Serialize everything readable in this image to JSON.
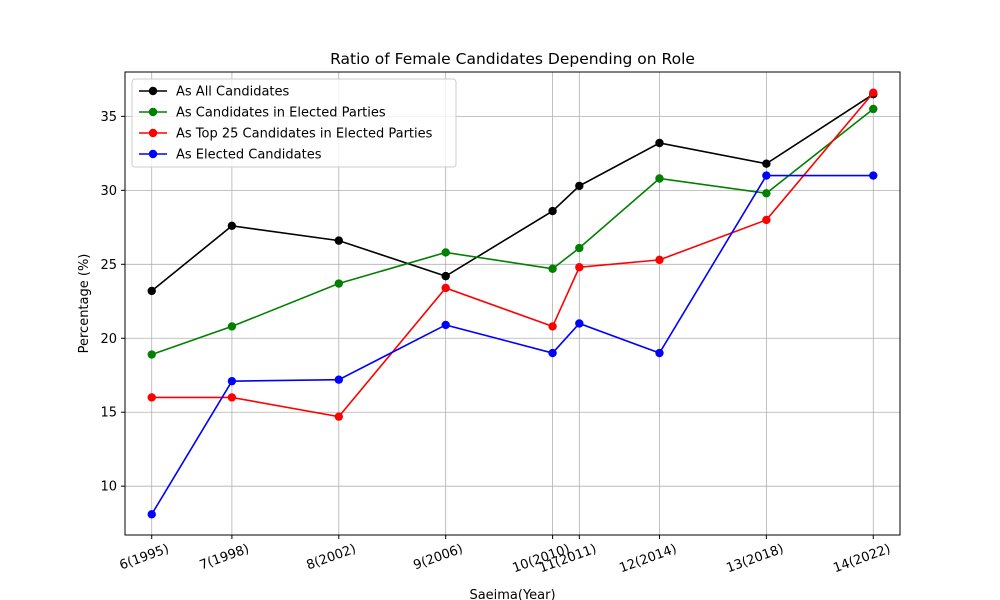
{
  "chart_data": {
    "type": "line",
    "title": "Ratio of Female Candidates Depending on Role",
    "xlabel": "Saeima(Year)",
    "ylabel": "Percentage (%)",
    "x": [
      1995,
      1998,
      2002,
      2006,
      2010,
      2011,
      2014,
      2018,
      2022
    ],
    "x_tick_labels": [
      "6(1995)",
      "7(1998)",
      "8(2002)",
      "9(2006)",
      "10(2010)",
      "11(2011)",
      "12(2014)",
      "13(2018)",
      "14(2022)"
    ],
    "xlim": [
      1994.0,
      2023.0
    ],
    "ylim": [
      6.7,
      38.0
    ],
    "y_ticks": [
      10,
      15,
      20,
      25,
      30,
      35
    ],
    "grid": true,
    "legend_position": "upper-left",
    "series": [
      {
        "name": "As All Candidates",
        "color": "#000000",
        "values": [
          23.2,
          27.6,
          26.6,
          24.2,
          28.6,
          30.3,
          33.2,
          31.8,
          36.5
        ]
      },
      {
        "name": "As Candidates in Elected Parties",
        "color": "#008000",
        "values": [
          18.9,
          20.8,
          23.7,
          25.8,
          24.7,
          26.1,
          30.8,
          29.8,
          35.5
        ]
      },
      {
        "name": "As Top 25 Candidates in Elected Parties",
        "color": "#ff0000",
        "values": [
          16.0,
          16.0,
          14.7,
          23.4,
          20.8,
          24.8,
          25.3,
          28.0,
          36.6
        ]
      },
      {
        "name": "As Elected Candidates",
        "color": "#0000ff",
        "values": [
          8.1,
          17.1,
          17.2,
          20.9,
          19.0,
          21.0,
          19.0,
          31.0,
          31.0
        ]
      }
    ]
  }
}
